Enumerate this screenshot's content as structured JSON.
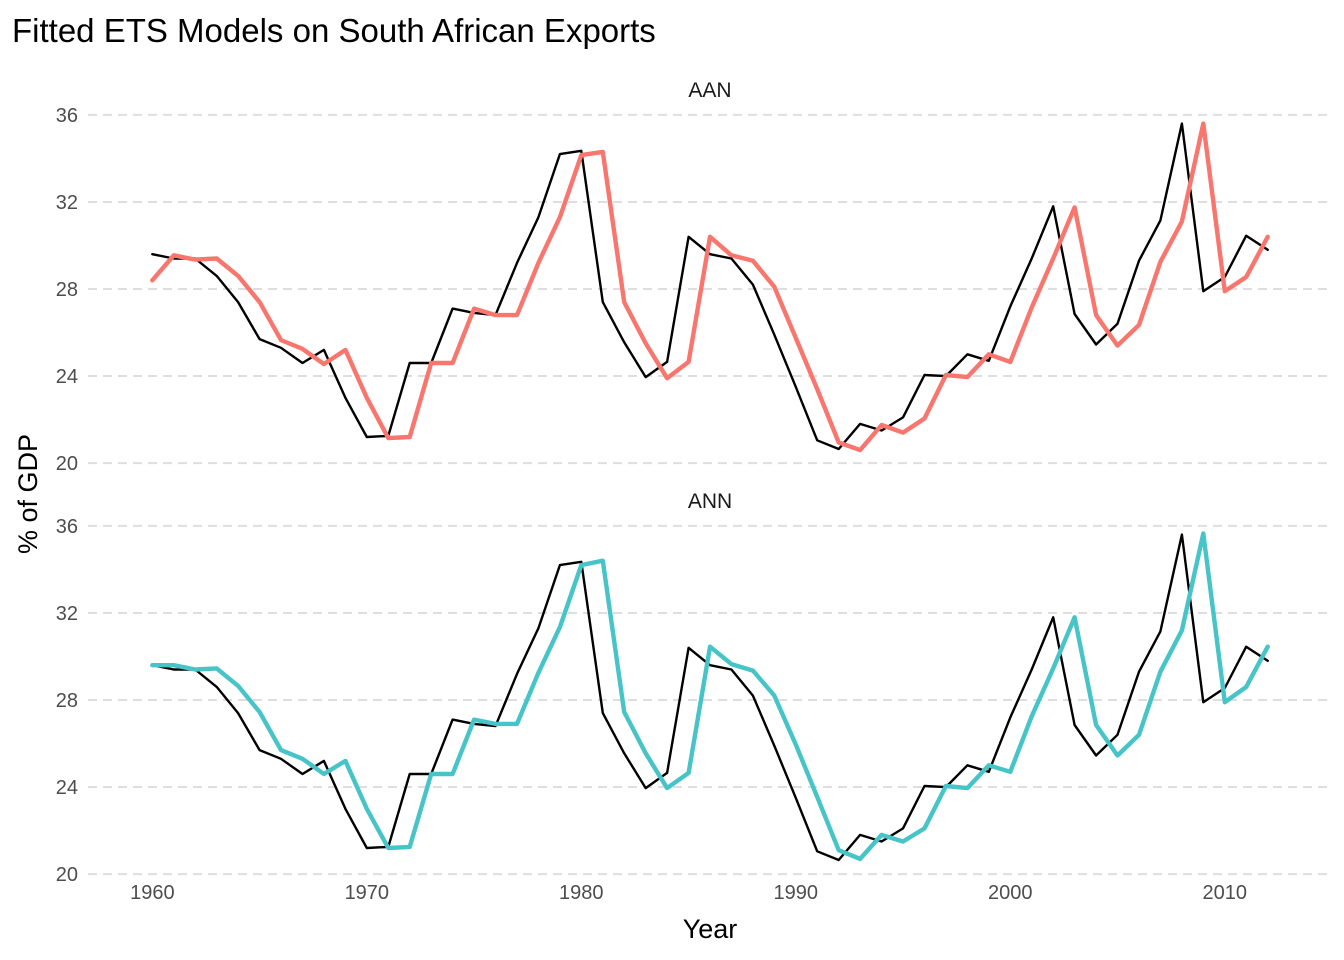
{
  "chart_data": {
    "type": "line",
    "title": "Fitted ETS Models on South African Exports",
    "xlabel": "Year",
    "ylabel": "% of GDP",
    "xlim": [
      1957,
      2015
    ],
    "ylim": [
      19.5,
      36.5
    ],
    "x_ticks": [
      1960,
      1970,
      1980,
      1990,
      2000,
      2010
    ],
    "y_ticks": [
      20,
      24,
      28,
      32,
      36
    ],
    "grid": "horizontal-dashed",
    "colors": {
      "actual": "#000000",
      "AAN": "#f8766d",
      "ANN": "#46c4c8"
    },
    "years": [
      1960,
      1961,
      1962,
      1963,
      1964,
      1965,
      1966,
      1967,
      1968,
      1969,
      1970,
      1971,
      1972,
      1973,
      1974,
      1975,
      1976,
      1977,
      1978,
      1979,
      1980,
      1981,
      1982,
      1983,
      1984,
      1985,
      1986,
      1987,
      1988,
      1989,
      1990,
      1991,
      1992,
      1993,
      1994,
      1995,
      1996,
      1997,
      1998,
      1999,
      2000,
      2001,
      2002,
      2003,
      2004,
      2005,
      2006,
      2007,
      2008,
      2009,
      2010,
      2011,
      2012
    ],
    "actual": [
      29.6,
      29.4,
      29.4,
      28.6,
      27.4,
      25.7,
      25.3,
      24.6,
      25.2,
      23.0,
      21.2,
      21.25,
      24.6,
      24.6,
      27.1,
      26.9,
      26.8,
      29.2,
      31.3,
      34.2,
      34.35,
      27.4,
      25.55,
      23.95,
      24.65,
      30.4,
      29.6,
      29.4,
      28.2,
      25.9,
      23.5,
      21.05,
      20.65,
      21.8,
      21.5,
      22.1,
      24.05,
      24.0,
      25.0,
      24.7,
      27.2,
      29.4,
      31.8,
      26.85,
      25.45,
      26.4,
      29.3,
      31.15,
      35.6,
      27.9,
      28.55,
      30.45,
      29.8
    ],
    "facets": [
      {
        "label": "AAN",
        "series": [
          {
            "name": "actual",
            "values": [
              29.6,
              29.4,
              29.4,
              28.6,
              27.4,
              25.7,
              25.3,
              24.6,
              25.2,
              23.0,
              21.2,
              21.25,
              24.6,
              24.6,
              27.1,
              26.9,
              26.8,
              29.2,
              31.3,
              34.2,
              34.35,
              27.4,
              25.55,
              23.95,
              24.65,
              30.4,
              29.6,
              29.4,
              28.2,
              25.9,
              23.5,
              21.05,
              20.65,
              21.8,
              21.5,
              22.1,
              24.05,
              24.0,
              25.0,
              24.7,
              27.2,
              29.4,
              31.8,
              26.85,
              25.45,
              26.4,
              29.3,
              31.15,
              35.6,
              27.9,
              28.55,
              30.45,
              29.8
            ]
          },
          {
            "name": "AAN",
            "values": [
              28.4,
              29.55,
              29.35,
              29.4,
              28.6,
              27.4,
              25.65,
              25.25,
              24.55,
              25.2,
              23.0,
              21.15,
              21.2,
              24.6,
              24.6,
              27.1,
              26.8,
              26.8,
              29.2,
              31.3,
              34.15,
              34.3,
              27.4,
              25.5,
              23.9,
              24.65,
              30.4,
              29.55,
              29.3,
              28.1,
              25.75,
              23.4,
              20.95,
              20.6,
              21.75,
              21.4,
              22.05,
              24.05,
              23.95,
              25.0,
              24.65,
              27.15,
              29.4,
              31.75,
              26.8,
              25.4,
              26.35,
              29.25,
              31.1,
              35.6,
              27.9,
              28.55,
              30.4
            ]
          }
        ]
      },
      {
        "label": "ANN",
        "series": [
          {
            "name": "actual",
            "values": [
              29.6,
              29.4,
              29.4,
              28.6,
              27.4,
              25.7,
              25.3,
              24.6,
              25.2,
              23.0,
              21.2,
              21.25,
              24.6,
              24.6,
              27.1,
              26.9,
              26.8,
              29.2,
              31.3,
              34.2,
              34.35,
              27.4,
              25.55,
              23.95,
              24.65,
              30.4,
              29.6,
              29.4,
              28.2,
              25.9,
              23.5,
              21.05,
              20.65,
              21.8,
              21.5,
              22.1,
              24.05,
              24.0,
              25.0,
              24.7,
              27.2,
              29.4,
              31.8,
              26.85,
              25.45,
              26.4,
              29.3,
              31.15,
              35.6,
              27.9,
              28.55,
              30.45,
              29.8
            ]
          },
          {
            "name": "ANN",
            "values": [
              29.6,
              29.6,
              29.4,
              29.45,
              28.65,
              27.45,
              25.7,
              25.3,
              24.6,
              25.2,
              23.0,
              21.2,
              21.25,
              24.6,
              24.6,
              27.1,
              26.9,
              26.9,
              29.25,
              31.35,
              34.2,
              34.4,
              27.45,
              25.55,
              23.95,
              24.65,
              30.45,
              29.65,
              29.35,
              28.2,
              25.95,
              23.55,
              21.1,
              20.7,
              21.8,
              21.5,
              22.1,
              24.05,
              23.95,
              25.0,
              24.7,
              27.25,
              29.45,
              31.8,
              26.85,
              25.45,
              26.4,
              29.3,
              31.2,
              35.65,
              27.9,
              28.6,
              30.45
            ]
          }
        ]
      }
    ]
  }
}
